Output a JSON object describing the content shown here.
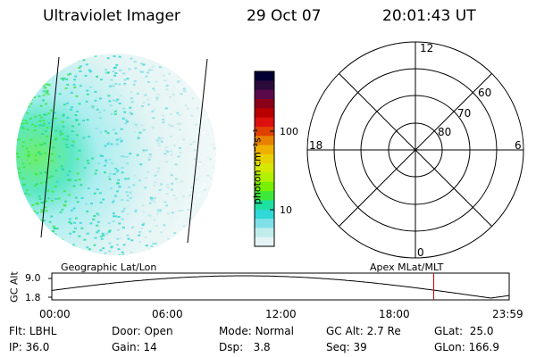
{
  "header": {
    "instrument": "Ultraviolet Imager",
    "date": "29 Oct 07",
    "time": "20:01:43 UT"
  },
  "colorbar": {
    "unit_label": "photon cm⁻²s⁻¹",
    "tick_labels": [
      "100",
      "10"
    ],
    "colors": [
      "#000033",
      "#2a0a3a",
      "#5a0a4a",
      "#8a0018",
      "#b80000",
      "#dd1010",
      "#e04000",
      "#e88000",
      "#f0b000",
      "#e8d000",
      "#d4e800",
      "#b0f000",
      "#78ee00",
      "#3ee83a",
      "#1ee0a0",
      "#30d8d8",
      "#80e0e8",
      "#c0ecec",
      "#e4f4f4"
    ]
  },
  "polar_plot": {
    "mlt_labels": [
      "12",
      "18",
      "6",
      "0"
    ],
    "lat_labels": [
      "60",
      "70",
      "80"
    ]
  },
  "timeline": {
    "y_axis_label": "GC Alt",
    "y_ticks": [
      "9.0",
      "1.8"
    ],
    "left_caption": "Geographic Lat/Lon",
    "right_caption": "Apex MLat/MLT",
    "x_ticks": [
      "00:00",
      "06:00",
      "12:00",
      "18:00",
      "23:59"
    ],
    "current_time_fraction": 0.835
  },
  "info": {
    "flt_label": "Flt:",
    "flt_value": "LBHL",
    "ip_label": "IP:",
    "ip_value": "36.0",
    "door_label": "Door:",
    "door_value": "Open",
    "gain_label": "Gain:",
    "gain_value": "14",
    "mode_label": "Mode:",
    "mode_value": "Normal",
    "dsp_label": "Dsp:",
    "dsp_value": "3.8",
    "gcalt_label": "GC Alt:",
    "gcalt_value": "2.7 Re",
    "seq_label": "Seq:",
    "seq_value": "39",
    "glat_label": "GLat:",
    "glat_value": "25.0",
    "glon_label": "GLon:",
    "glon_value": "166.9"
  }
}
